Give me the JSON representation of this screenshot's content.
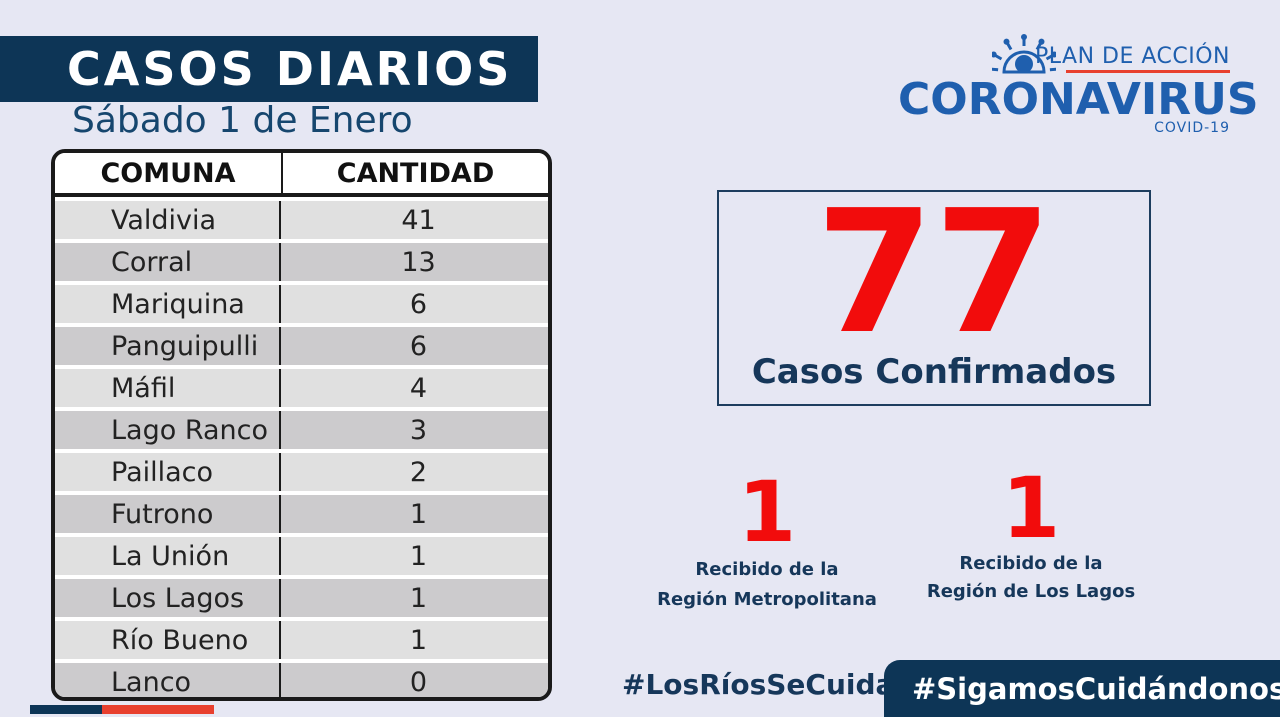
{
  "header": {
    "title": "CASOS DIARIOS",
    "date": "Sábado 1 de Enero"
  },
  "logo": {
    "plan": "PLAN DE ACCIÓN",
    "name": "CORONAVIRUS",
    "sub": "COVID-19",
    "icon": "virus-icon"
  },
  "table": {
    "headers": [
      "COMUNA",
      "CANTIDAD"
    ],
    "rows": [
      {
        "comuna": "Valdivia",
        "cantidad": "41"
      },
      {
        "comuna": "Corral",
        "cantidad": "13"
      },
      {
        "comuna": "Mariquina",
        "cantidad": "6"
      },
      {
        "comuna": "Panguipulli",
        "cantidad": "6"
      },
      {
        "comuna": "Máfil",
        "cantidad": "4"
      },
      {
        "comuna": "Lago Ranco",
        "cantidad": "3"
      },
      {
        "comuna": "Paillaco",
        "cantidad": "2"
      },
      {
        "comuna": "Futrono",
        "cantidad": "1"
      },
      {
        "comuna": "La Unión",
        "cantidad": "1"
      },
      {
        "comuna": "Los Lagos",
        "cantidad": "1"
      },
      {
        "comuna": "Río Bueno",
        "cantidad": "1"
      },
      {
        "comuna": "Lanco",
        "cantidad": "0"
      }
    ]
  },
  "total": {
    "value": "77",
    "label": "Casos Confirmados"
  },
  "received": [
    {
      "value": "1",
      "line1": "Recibido de la",
      "line2": "Región Metropolitana"
    },
    {
      "value": "1",
      "line1": "Recibido  de la",
      "line2": "Región de Los Lagos"
    }
  ],
  "hashtags": {
    "left": "#LosRíosSeCuida",
    "right": "#SigamosCuidándonos"
  },
  "colors": {
    "navy": "#0d3556",
    "accent_red": "#f20c0c",
    "brand_blue": "#1f5fae",
    "stripe_red": "#e8402f"
  }
}
